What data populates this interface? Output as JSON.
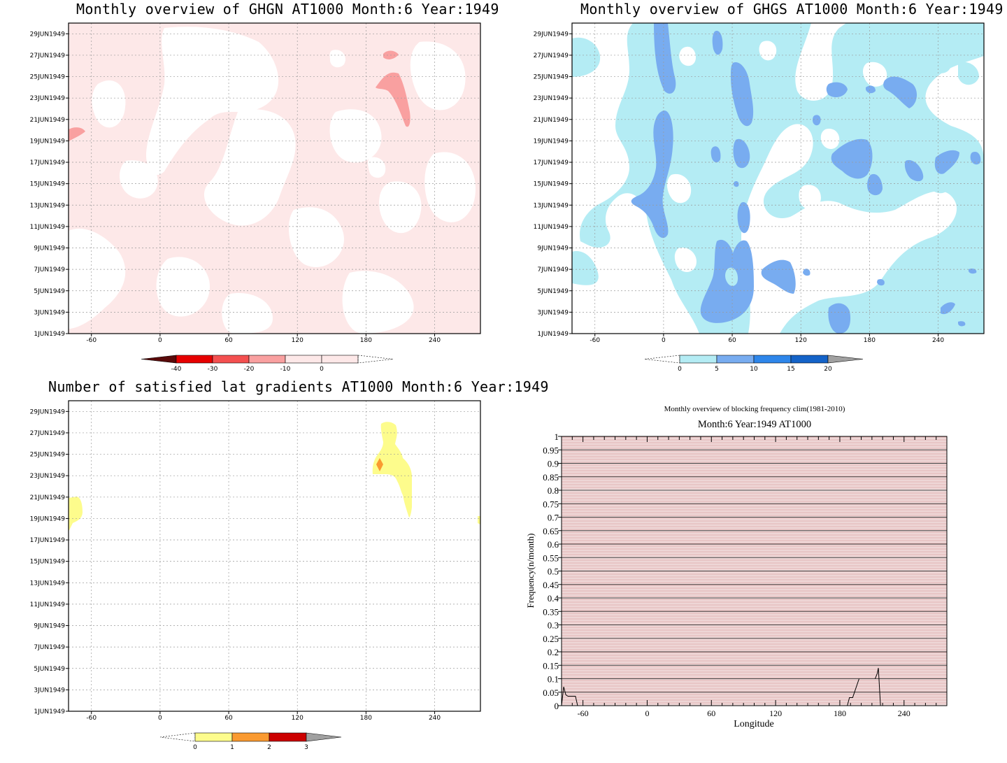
{
  "chart_data": [
    {
      "type": "heatmap",
      "title": "Monthly overview of GHGN AT1000 Month:6 Year:1949",
      "xticks": [
        "-60",
        "0",
        "60",
        "120",
        "180",
        "240"
      ],
      "xtick_values": [
        -60,
        0,
        60,
        120,
        180,
        240
      ],
      "yticks": [
        "1JUN1949",
        "3JUN1949",
        "5JUN1949",
        "7JUN1949",
        "9JUN1949",
        "11JUN1949",
        "13JUN1949",
        "15JUN1949",
        "17JUN1949",
        "19JUN1949",
        "21JUN1949",
        "23JUN1949",
        "25JUN1949",
        "27JUN1949",
        "29JUN1949"
      ],
      "xlim": [
        -80,
        280
      ],
      "ylim": [
        1,
        30
      ],
      "colorbar": {
        "labels": [
          "-40",
          "-30",
          "-20",
          "-10",
          "0"
        ],
        "colors": [
          "#5a0a0a",
          "#e60000",
          "#f45050",
          "#f9a0a0",
          "#fde8e8"
        ]
      },
      "grid": true
    },
    {
      "type": "heatmap",
      "title": "Monthly overview of GHGS AT1000 Month:6 Year:1949",
      "xticks": [
        "-60",
        "0",
        "60",
        "120",
        "180",
        "240"
      ],
      "xtick_values": [
        -60,
        0,
        60,
        120,
        180,
        240
      ],
      "yticks": [
        "1JUN1949",
        "3JUN1949",
        "5JUN1949",
        "7JUN1949",
        "9JUN1949",
        "11JUN1949",
        "13JUN1949",
        "15JUN1949",
        "17JUN1949",
        "19JUN1949",
        "21JUN1949",
        "23JUN1949",
        "25JUN1949",
        "27JUN1949",
        "29JUN1949"
      ],
      "xlim": [
        -80,
        280
      ],
      "ylim": [
        1,
        30
      ],
      "colorbar": {
        "labels": [
          "0",
          "5",
          "10",
          "15",
          "20"
        ],
        "colors": [
          "#b4ecf4",
          "#78acf0",
          "#2e86ea",
          "#1463c8",
          "#a0a0a0"
        ]
      },
      "grid": true
    },
    {
      "type": "heatmap",
      "title": "Number of satisfied lat gradients AT1000 Month:6 Year:1949",
      "xticks": [
        "-60",
        "0",
        "60",
        "120",
        "180",
        "240"
      ],
      "xtick_values": [
        -60,
        0,
        60,
        120,
        180,
        240
      ],
      "yticks": [
        "1JUN1949",
        "3JUN1949",
        "5JUN1949",
        "7JUN1949",
        "9JUN1949",
        "11JUN1949",
        "13JUN1949",
        "15JUN1949",
        "17JUN1949",
        "19JUN1949",
        "21JUN1949",
        "23JUN1949",
        "25JUN1949",
        "27JUN1949",
        "29JUN1949"
      ],
      "xlim": [
        -80,
        280
      ],
      "ylim": [
        1,
        30
      ],
      "colorbar": {
        "labels": [
          "0",
          "1",
          "2",
          "3"
        ],
        "colors": [
          "#fdfc8c",
          "#fa9a30",
          "#cc0000",
          "#a0a0a0"
        ]
      },
      "grid": true
    },
    {
      "type": "line",
      "title": "Monthly overview of blocking frequency clim(1981-2010)",
      "subtitle": "Month:6 Year:1949  AT1000",
      "xlabel": "Longitude",
      "ylabel": "Frequency(n/month)",
      "xticks": [
        "-60",
        "0",
        "60",
        "120",
        "180",
        "240"
      ],
      "xtick_values": [
        -60,
        0,
        60,
        120,
        180,
        240
      ],
      "yticks": [
        "0",
        "0.05",
        "0.1",
        "0.15",
        "0.2",
        "0.25",
        "0.3",
        "0.35",
        "0.4",
        "0.45",
        "0.5",
        "0.55",
        "0.6",
        "0.65",
        "0.7",
        "0.75",
        "0.8",
        "0.85",
        "0.9",
        "0.95",
        "1"
      ],
      "xlim": [
        -80,
        280
      ],
      "ylim": [
        0,
        1
      ],
      "series": [
        {
          "x": [
            -80,
            -78,
            -76,
            -74,
            -72,
            -70,
            -67,
            -65
          ],
          "y": [
            0,
            0.07,
            0.04,
            0.035,
            0.035,
            0.035,
            0.035,
            0
          ]
        },
        {
          "x": [
            185,
            187,
            189,
            192,
            198
          ],
          "y": [
            0,
            0,
            0.03,
            0.03,
            0.1
          ]
        },
        {
          "x": [
            213,
            215,
            216,
            218
          ],
          "y": [
            0.1,
            0.12,
            0.14,
            0
          ]
        }
      ]
    }
  ]
}
